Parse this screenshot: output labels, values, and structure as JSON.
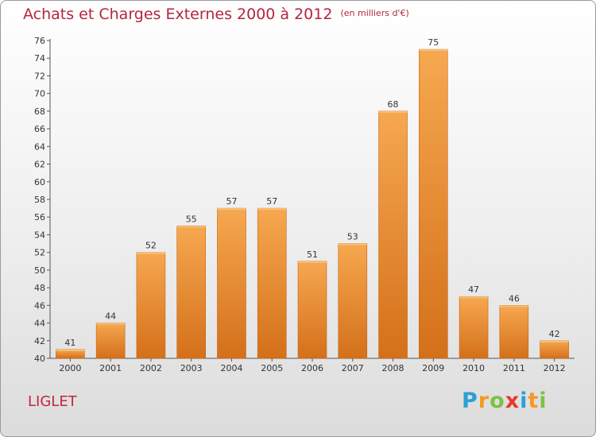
{
  "title": "Achats et Charges Externes 2000 à 2012",
  "unit": "(en milliers d'€)",
  "commune": "LIGLET",
  "logo": {
    "text": "Proxiti",
    "colors": [
      "#2aa0d8",
      "#f39a24",
      "#7dc242",
      "#e53a2d",
      "#2aa0d8",
      "#f39a24",
      "#7dc242"
    ]
  },
  "colors": {
    "title": "#b5263d",
    "bar_top": "#f6a850",
    "bar_bottom": "#d4701a",
    "bar_edge": "#c96414"
  },
  "chart_data": {
    "type": "bar",
    "title": "Achats et Charges Externes 2000 à 2012",
    "categories": [
      "2000",
      "2001",
      "2002",
      "2003",
      "2004",
      "2005",
      "2006",
      "2007",
      "2008",
      "2009",
      "2010",
      "2011",
      "2012"
    ],
    "values": [
      41,
      44,
      52,
      55,
      57,
      57,
      51,
      53,
      68,
      75,
      47,
      46,
      42
    ],
    "data_labels": [
      "41",
      "44",
      "52",
      "55",
      "57",
      "57",
      "51",
      "53",
      "68",
      "75",
      "47",
      "46",
      "42"
    ],
    "yticks": [
      "40",
      "42",
      "44",
      "46",
      "48",
      "50",
      "52",
      "54",
      "56",
      "58",
      "60",
      "62",
      "64",
      "66",
      "68",
      "70",
      "72",
      "74",
      "76"
    ],
    "ylim": [
      40,
      76
    ],
    "xlabel": "",
    "ylabel": "",
    "grid": false
  }
}
